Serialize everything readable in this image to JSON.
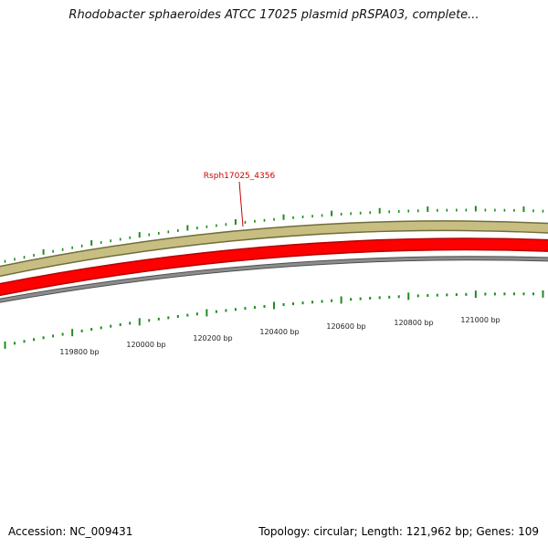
{
  "title": "Rhodobacter sphaeroides ATCC 17025 plasmid pRSPA03, complete...",
  "footer": {
    "accession": "Accession: NC_009431",
    "topology": "Topology: circular; Length: 121,962 bp; Genes: 109"
  },
  "gene_label": "Rsph17025_4356",
  "ticks": [
    "119800 bp",
    "120000 bp",
    "120200 bp",
    "120400 bp",
    "120600 bp",
    "120800 bp",
    "121000 bp"
  ],
  "colors": {
    "outer_track": "#c8be82",
    "outer_track_edge": "#6e6e3c",
    "gene_track": "#ff0000",
    "gene_track_edge": "#b40000",
    "backbone": "#8c8c8c",
    "backbone_edge": "#505050",
    "gc_marks": "#1e8c1e",
    "gene_label": "#cc0000"
  }
}
